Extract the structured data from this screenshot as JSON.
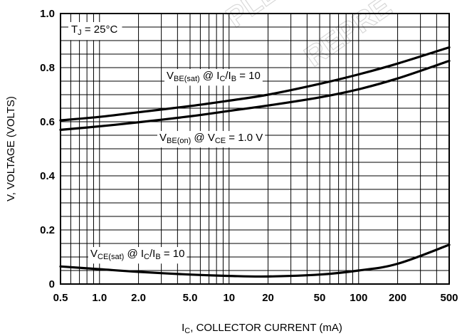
{
  "watermark": [
    "PLE",
    "REPRE"
  ],
  "chart_data": {
    "type": "line",
    "x_scale": "log",
    "xlim": [
      0.5,
      500
    ],
    "ylim": [
      0,
      1.0
    ],
    "grid": true,
    "legend": "none",
    "xticks": [
      0.5,
      1.0,
      2.0,
      5.0,
      10,
      20,
      50,
      100,
      200,
      500
    ],
    "xtick_labels": [
      "0.5",
      "1.0",
      "2.0",
      "5.0",
      "10",
      "20",
      "50",
      "100",
      "200",
      "500"
    ],
    "yticks": [
      0,
      0.2,
      0.4,
      0.6,
      0.8,
      1.0
    ],
    "ytick_labels": [
      "0",
      "0.2",
      "0.4",
      "0.6",
      "0.8",
      "1.0"
    ],
    "xlabel": {
      "main": "I",
      "sub": "C",
      "rest": ", COLLECTOR CURRENT (mA)"
    },
    "ylabel": "V, VOLTAGE (VOLTS)",
    "condition": {
      "main": "T",
      "sub": "J",
      "rest": " = 25°C"
    },
    "series": [
      {
        "id": "vbe-sat",
        "label_parts": [
          [
            "V",
            ""
          ],
          [
            "BE(sat)",
            "sub"
          ],
          [
            " @ I",
            ""
          ],
          [
            "C",
            "sub"
          ],
          [
            "/I",
            ""
          ],
          [
            "B",
            "sub"
          ],
          [
            " = 10",
            ""
          ]
        ],
        "x": [
          0.5,
          1.0,
          2.0,
          5.0,
          10,
          20,
          50,
          100,
          200,
          500
        ],
        "y": [
          0.605,
          0.618,
          0.635,
          0.658,
          0.678,
          0.7,
          0.74,
          0.775,
          0.815,
          0.875
        ]
      },
      {
        "id": "vbe-on",
        "label_parts": [
          [
            "V",
            ""
          ],
          [
            "BE(on)",
            "sub"
          ],
          [
            " @ V",
            ""
          ],
          [
            "CE",
            "sub"
          ],
          [
            " = 1.0 V",
            ""
          ]
        ],
        "x": [
          0.5,
          1.0,
          2.0,
          5.0,
          10,
          20,
          50,
          100,
          200,
          500
        ],
        "y": [
          0.57,
          0.583,
          0.598,
          0.62,
          0.64,
          0.66,
          0.69,
          0.72,
          0.76,
          0.825
        ]
      },
      {
        "id": "vce-sat",
        "label_parts": [
          [
            "V",
            ""
          ],
          [
            "CE(sat)",
            "sub"
          ],
          [
            " @ I",
            ""
          ],
          [
            "C",
            "sub"
          ],
          [
            "/I",
            ""
          ],
          [
            "B",
            "sub"
          ],
          [
            " = 10",
            ""
          ]
        ],
        "x": [
          0.5,
          1.0,
          2.0,
          5.0,
          10,
          20,
          50,
          100,
          200,
          500
        ],
        "y": [
          0.065,
          0.055,
          0.045,
          0.035,
          0.03,
          0.028,
          0.035,
          0.05,
          0.075,
          0.145
        ]
      }
    ]
  }
}
